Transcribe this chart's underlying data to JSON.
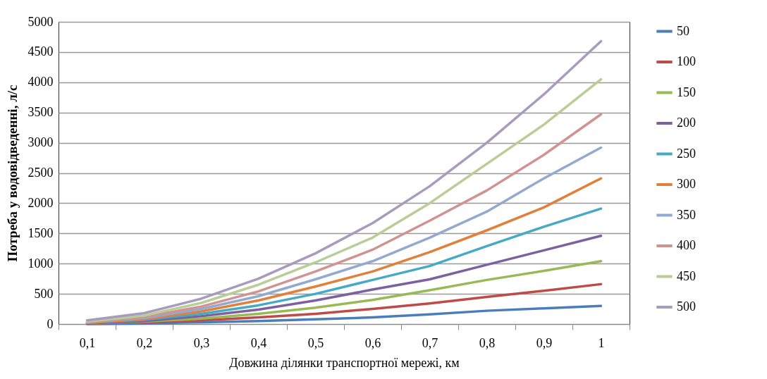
{
  "chart_data": {
    "type": "line",
    "xlabel": "Довжина ділянки транспортної мережі, км",
    "ylabel": "Потреба у водовідведенні, л/с",
    "categories": [
      "0,1",
      "0,2",
      "0,3",
      "0,4",
      "0,5",
      "0,6",
      "0,7",
      "0,8",
      "0,9",
      "1"
    ],
    "ylim": [
      0,
      5000
    ],
    "yticks": [
      0,
      500,
      1000,
      1500,
      2000,
      2500,
      3000,
      3500,
      4000,
      4500,
      5000
    ],
    "grid": "y",
    "legend": "right",
    "marker": "none",
    "line_style": "solid",
    "series": [
      {
        "name": "50",
        "color": "#4a7ebb",
        "values": [
          0,
          10,
          30,
          50,
          80,
          110,
          160,
          220,
          260,
          300
        ]
      },
      {
        "name": "100",
        "color": "#be4b48",
        "values": [
          10,
          30,
          60,
          110,
          170,
          250,
          340,
          450,
          550,
          660
        ]
      },
      {
        "name": "150",
        "color": "#98b954",
        "values": [
          10,
          40,
          90,
          170,
          270,
          400,
          560,
          730,
          880,
          1040
        ]
      },
      {
        "name": "200",
        "color": "#7d60a0",
        "values": [
          10,
          50,
          130,
          240,
          390,
          570,
          740,
          980,
          1220,
          1460
        ]
      },
      {
        "name": "250",
        "color": "#46aac5",
        "values": [
          20,
          70,
          170,
          310,
          500,
          730,
          960,
          1290,
          1610,
          1910
        ]
      },
      {
        "name": "300",
        "color": "#e0803a",
        "values": [
          20,
          80,
          210,
          390,
          620,
          870,
          1190,
          1550,
          1930,
          2410
        ]
      },
      {
        "name": "350",
        "color": "#93a9cf",
        "values": [
          30,
          100,
          250,
          460,
          740,
          1040,
          1430,
          1860,
          2410,
          2920
        ]
      },
      {
        "name": "400",
        "color": "#d19392",
        "values": [
          30,
          120,
          290,
          540,
          870,
          1230,
          1710,
          2210,
          2800,
          3470
        ]
      },
      {
        "name": "450",
        "color": "#b9cd96",
        "values": [
          40,
          140,
          350,
          650,
          1020,
          1430,
          2000,
          2650,
          3300,
          4050
        ]
      },
      {
        "name": "500",
        "color": "#a99bbd",
        "values": [
          60,
          180,
          420,
          750,
          1170,
          1670,
          2280,
          3000,
          3800,
          4680
        ]
      }
    ]
  }
}
